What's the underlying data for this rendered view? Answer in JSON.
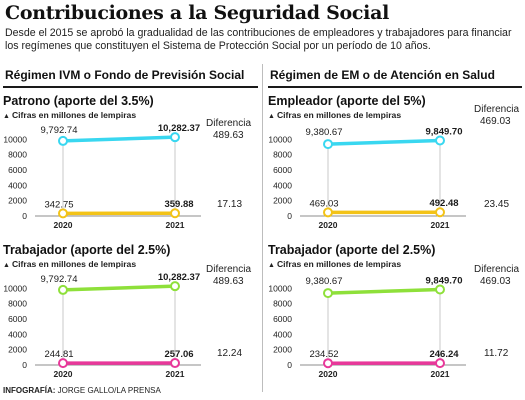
{
  "header": {
    "title": "Contribuciones a la Seguridad Social",
    "subtitle": "Desde el 2015 se aprobó la gradualidad de las contribuciones de empleadores y trabajadores para financiar los regímenes que constituyen el Sistema de Protección Social por un período de 10 años."
  },
  "sections": [
    {
      "title": "Régimen IVM o Fondo de Previsión Social"
    },
    {
      "title": "Régimen de EM o de Atención en Salud"
    }
  ],
  "footer": {
    "label": "INFOGRAFÍA:",
    "credit": " JORGE GALLO/LA PRENSA"
  },
  "colors": {
    "top_series": "#39d7f0",
    "top_series_green": "#8ee03a",
    "bottom_series_yellow": "#f3c318",
    "bottom_series_pink": "#e8389a"
  },
  "chart_data": [
    {
      "type": "line",
      "title": "Patrono (aporte del 3.5%)",
      "ylabel": "Cifras en millones de lempiras",
      "x": [
        "2020",
        "2021"
      ],
      "yticks": [
        "10000",
        "8000",
        "6000",
        "4000",
        "2000",
        "0"
      ],
      "ylim": [
        0,
        12000
      ],
      "series": [
        {
          "values": [
            9792.74,
            10282.37
          ],
          "labels": [
            "9,792.74",
            "10,282.37"
          ],
          "color": "#39d7f0"
        },
        {
          "values": [
            342.75,
            359.88
          ],
          "labels": [
            "342.75",
            "359.88"
          ],
          "color": "#f3c318"
        }
      ],
      "diff_label": "Diferencia",
      "diffs": [
        "489.63",
        "17.13"
      ]
    },
    {
      "type": "line",
      "title": "Empleador (aporte del 5%)",
      "ylabel": "Cifras en millones de lempiras",
      "x": [
        "2020",
        "2021"
      ],
      "yticks": [
        "10000",
        "8000",
        "6000",
        "4000",
        "2000",
        "0"
      ],
      "ylim": [
        0,
        12000
      ],
      "series": [
        {
          "values": [
            9380.67,
            9849.7
          ],
          "labels": [
            "9,380.67",
            "9,849.70"
          ],
          "color": "#39d7f0"
        },
        {
          "values": [
            469.03,
            492.48
          ],
          "labels": [
            "469.03",
            "492.48"
          ],
          "color": "#f3c318"
        }
      ],
      "diff_label": "Diferencia",
      "diffs": [
        "469.03",
        "23.45"
      ]
    },
    {
      "type": "line",
      "title": "Trabajador (aporte del 2.5%)",
      "ylabel": "Cifras en millones de lempiras",
      "x": [
        "2020",
        "2021"
      ],
      "yticks": [
        "10000",
        "8000",
        "6000",
        "4000",
        "2000",
        "0"
      ],
      "ylim": [
        0,
        12000
      ],
      "series": [
        {
          "values": [
            9792.74,
            10282.37
          ],
          "labels": [
            "9,792.74",
            "10,282.37"
          ],
          "color": "#8ee03a"
        },
        {
          "values": [
            244.81,
            257.06
          ],
          "labels": [
            "244.81",
            "257.06"
          ],
          "color": "#e8389a"
        }
      ],
      "diff_label": "Diferencia",
      "diffs": [
        "489.63",
        "12.24"
      ]
    },
    {
      "type": "line",
      "title": "Trabajador (aporte del 2.5%)",
      "ylabel": "Cifras en millones de lempiras",
      "x": [
        "2020",
        "2021"
      ],
      "yticks": [
        "10000",
        "8000",
        "6000",
        "4000",
        "2000",
        "0"
      ],
      "ylim": [
        0,
        12000
      ],
      "series": [
        {
          "values": [
            9380.67,
            9849.7
          ],
          "labels": [
            "9,380.67",
            "9,849.70"
          ],
          "color": "#8ee03a"
        },
        {
          "values": [
            234.52,
            246.24
          ],
          "labels": [
            "234.52",
            "246.24"
          ],
          "color": "#e8389a"
        }
      ],
      "diff_label": "Diferencia",
      "diffs": [
        "469.03",
        "11.72"
      ]
    }
  ]
}
